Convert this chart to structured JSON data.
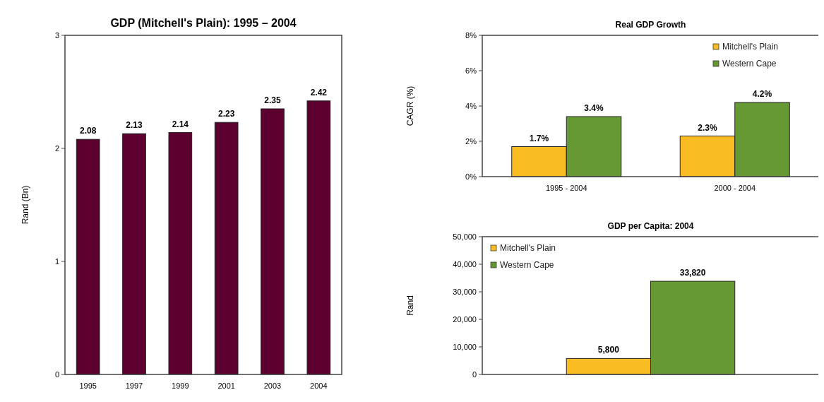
{
  "chart_data": [
    {
      "type": "bar",
      "title": "GDP (Mitchell's Plain): 1995 – 2004",
      "ylabel": "Rand (Bn)",
      "categories": [
        "1995",
        "1997",
        "1999",
        "2001",
        "2003",
        "2004"
      ],
      "series": [
        {
          "color": "#5c0030",
          "values": [
            2.08,
            2.13,
            2.14,
            2.23,
            2.35,
            2.42
          ]
        }
      ],
      "data_labels": true,
      "ylim": [
        0,
        3
      ],
      "yticks": [
        0,
        1,
        2,
        3
      ],
      "grid": false,
      "legend": false
    },
    {
      "type": "bar",
      "title": "Real GDP Growth",
      "ylabel": "CAGR (%)",
      "categories": [
        "1995 - 2004",
        "2000 - 2004"
      ],
      "series": [
        {
          "name": "Mitchell's Plain",
          "color": "#f9bc22",
          "values": [
            1.7,
            2.3
          ],
          "value_labels": [
            "1.7%",
            "2.3%"
          ]
        },
        {
          "name": "Western Cape",
          "color": "#669933",
          "values": [
            3.4,
            4.2
          ],
          "value_labels": [
            "3.4%",
            "4.2%"
          ]
        }
      ],
      "ylim": [
        0,
        8
      ],
      "yticks": [
        {
          "value": 0,
          "label": "0%"
        },
        {
          "value": 2,
          "label": "2%"
        },
        {
          "value": 4,
          "label": "4%"
        },
        {
          "value": 6,
          "label": "6%"
        },
        {
          "value": 8,
          "label": "8%"
        }
      ],
      "grid": false,
      "legend": "top right"
    },
    {
      "type": "bar",
      "title": "GDP per Capita: 2004",
      "ylabel": "Rand",
      "categories": [
        null
      ],
      "series": [
        {
          "name": "Mitchell's Plain",
          "color": "#f9bc22",
          "values": [
            5800
          ],
          "value_labels": [
            "5,800"
          ]
        },
        {
          "name": "Western Cape",
          "color": "#669933",
          "values": [
            33820
          ],
          "value_labels": [
            "33,820"
          ]
        }
      ],
      "ylim": [
        0,
        50000
      ],
      "yticks": [
        0,
        {
          "value": 10000,
          "label": "10,000"
        },
        {
          "value": 20000,
          "label": "20,000"
        },
        {
          "value": 30000,
          "label": "30,000"
        },
        {
          "value": 40000,
          "label": "40,000"
        },
        {
          "value": 50000,
          "label": "50,000"
        }
      ],
      "grid": false,
      "legend": "top left"
    }
  ]
}
